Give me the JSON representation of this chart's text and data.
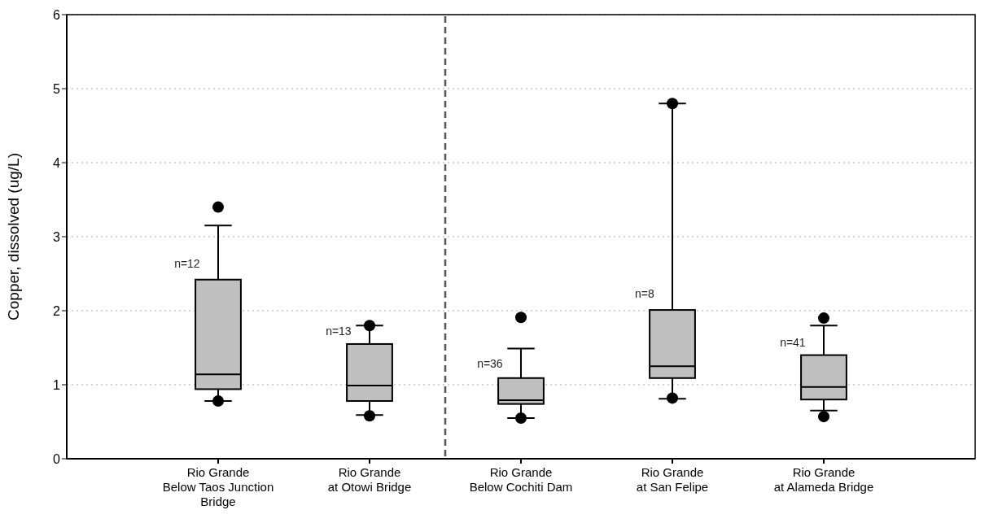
{
  "chart_data": {
    "type": "box",
    "ylabel": "Copper, dissolved (ug/L)",
    "categories": [
      "Rio Grande\nBelow Taos Junction\nBridge",
      "Rio Grande\nat Otowi Bridge",
      "Rio Grande\nBelow Cochiti Dam",
      "Rio Grande\nat San Felipe",
      "Rio Grande\nat Alameda Bridge"
    ],
    "series": [
      {
        "color": "#c0c0c0",
        "boxes": [
          {
            "low": 0.78,
            "q1": 0.94,
            "median": 1.14,
            "q3": 2.42,
            "high": 3.15,
            "outliers": [
              3.4,
              0.78
            ]
          },
          {
            "low": 0.59,
            "q1": 0.78,
            "median": 0.99,
            "q3": 1.55,
            "high": 1.8,
            "outliers": [
              1.8,
              0.58
            ]
          },
          {
            "low": 0.55,
            "q1": 0.74,
            "median": 0.79,
            "q3": 1.09,
            "high": 1.49,
            "outliers": [
              1.91,
              0.55
            ]
          },
          {
            "low": 0.81,
            "q1": 1.09,
            "median": 1.25,
            "q3": 2.01,
            "high": 4.8,
            "outliers": [
              4.8,
              0.82
            ]
          },
          {
            "low": 0.65,
            "q1": 0.8,
            "median": 0.97,
            "q3": 1.4,
            "high": 1.8,
            "outliers": [
              1.9,
              0.57
            ]
          }
        ]
      }
    ],
    "ylim": [
      0,
      6
    ],
    "yticks": [
      0,
      1,
      2,
      3,
      4,
      5,
      6
    ],
    "grid": "y",
    "annotations": [
      {
        "text": "n=12",
        "x": "Rio Grande\nBelow Taos Junction\nBridge",
        "y": 2.62
      },
      {
        "text": "n=13",
        "x": "Rio Grande\nat Otowi Bridge",
        "y": 1.71
      },
      {
        "text": "n=36",
        "x": "Rio Grande\nBelow Cochiti Dam",
        "y": 1.27
      },
      {
        "text": "n=8",
        "x": "Rio Grande\nat San Felipe",
        "y": 2.22
      },
      {
        "text": "n=41",
        "x": "Rio Grande\nat Alameda Bridge",
        "y": 1.56
      }
    ]
  }
}
